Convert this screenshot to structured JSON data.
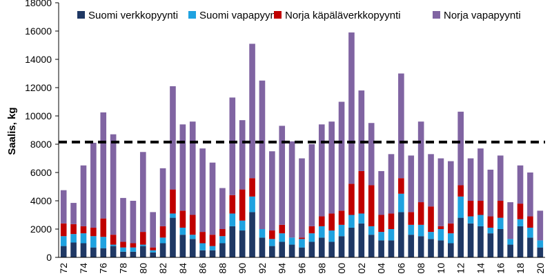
{
  "chart_data": {
    "type": "bar",
    "stacked": true,
    "title": "",
    "xlabel": "",
    "ylabel": "Saalis, kg",
    "ylim": [
      0,
      18000
    ],
    "yticks": [
      0,
      2000,
      4000,
      6000,
      8000,
      10000,
      12000,
      14000,
      16000,
      18000
    ],
    "grid": false,
    "legend": "top",
    "reference_line": {
      "value": 8150,
      "style": "dashed",
      "color": "#000000"
    },
    "categories": [
      "72",
      "73",
      "74",
      "75",
      "76",
      "77",
      "78",
      "79",
      "80",
      "81",
      "82",
      "83",
      "84",
      "85",
      "86",
      "87",
      "88",
      "89",
      "90",
      "91",
      "92",
      "93",
      "94",
      "95",
      "96",
      "97",
      "98",
      "99",
      "00",
      "01",
      "02",
      "03",
      "04",
      "05",
      "06",
      "07",
      "08",
      "09",
      "10",
      "11",
      "12",
      "13",
      "14",
      "15",
      "16",
      "17",
      "18",
      "19",
      "20"
    ],
    "category_labels": [
      "72",
      "",
      "74",
      "",
      "76",
      "",
      "78",
      "",
      "80",
      "",
      "82",
      "",
      "84",
      "",
      "86",
      "",
      "88",
      "",
      "90",
      "",
      "92",
      "",
      "94",
      "",
      "96",
      "",
      "98",
      "",
      "00",
      "",
      "02",
      "",
      "04",
      "",
      "06",
      "",
      "08",
      "",
      "10",
      "",
      "12",
      "",
      "14",
      "",
      "16",
      "",
      "18",
      "",
      "20"
    ],
    "series": [
      {
        "name": "Suomi verkkopyynti",
        "color": "#1f3864",
        "values": [
          800,
          1050,
          1000,
          700,
          650,
          800,
          400,
          400,
          800,
          350,
          1000,
          2800,
          1600,
          1300,
          500,
          500,
          1000,
          2200,
          1900,
          3200,
          1400,
          800,
          1100,
          900,
          700,
          1100,
          1400,
          1100,
          1500,
          2100,
          2400,
          1600,
          1200,
          1200,
          3200,
          1600,
          1500,
          1300,
          1200,
          1000,
          2800,
          2400,
          2200,
          1700,
          2000,
          900,
          2200,
          1400,
          700
        ]
      },
      {
        "name": "Suomi vapapyynti",
        "color": "#1fa2e0",
        "values": [
          700,
          600,
          700,
          800,
          800,
          100,
          300,
          300,
          100,
          150,
          400,
          300,
          500,
          300,
          500,
          300,
          500,
          900,
          700,
          1100,
          600,
          500,
          600,
          500,
          600,
          600,
          800,
          800,
          800,
          900,
          700,
          600,
          600,
          800,
          1300,
          700,
          800,
          500,
          800,
          700,
          1500,
          500,
          800,
          400,
          800,
          400,
          500,
          700,
          500
        ]
      },
      {
        "name": "Norja käpäläverkkopyynti",
        "color": "#c00000",
        "values": [
          900,
          700,
          500,
          600,
          1300,
          700,
          400,
          300,
          900,
          200,
          800,
          1700,
          1200,
          1400,
          800,
          800,
          500,
          1300,
          2200,
          1300,
          0,
          600,
          600,
          0,
          100,
          500,
          700,
          1200,
          1000,
          2200,
          3000,
          2900,
          1200,
          1100,
          1100,
          900,
          1600,
          1800,
          200,
          700,
          800,
          1100,
          1000,
          800,
          1200,
          0,
          1100,
          800,
          0
        ]
      },
      {
        "name": "Norja vapapyynti",
        "color": "#8064a2",
        "values": [
          2350,
          1500,
          4300,
          6000,
          7500,
          7100,
          3100,
          3000,
          5650,
          2500,
          4100,
          7300,
          6100,
          6600,
          5900,
          5100,
          2900,
          6900,
          4900,
          9500,
          10500,
          5600,
          7000,
          6800,
          5600,
          5800,
          6500,
          6500,
          7700,
          10700,
          5700,
          4400,
          3100,
          4200,
          7400,
          4000,
          5700,
          3700,
          4800,
          4400,
          5200,
          3000,
          3700,
          3300,
          3200,
          2600,
          2700,
          3100,
          2100
        ]
      }
    ]
  }
}
